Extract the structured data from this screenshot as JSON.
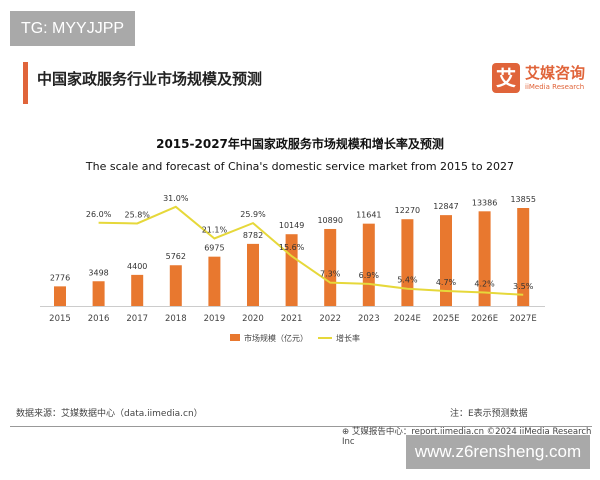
{
  "watermark_top": "TG: MYYJJPP",
  "watermark_bottom": "www.z6rensheng.com",
  "header": {
    "title": "中国家政服务行业市场规模及预测"
  },
  "logo": {
    "mark": "艾",
    "name_cn": "艾媒咨询",
    "name_en": "iiMedia Research"
  },
  "footer": {
    "source": "数据来源：艾媒数据中心（data.iimedia.cn）",
    "note": "注：E表示预测数据",
    "report": "艾媒报告中心：report.iimedia.cn    ©2024  iiMedia Research  Inc"
  },
  "chart_data": {
    "type": "bar",
    "title": "2015-2027年中国家政服务市场规模和增长率及预测",
    "subtitle": "The scale and forecast of China's domestic service market from 2015 to 2027",
    "categories": [
      "2015",
      "2016",
      "2017",
      "2018",
      "2019",
      "2020",
      "2021",
      "2022",
      "2023",
      "2024E",
      "2025E",
      "2026E",
      "2027E"
    ],
    "series": [
      {
        "name": "市场规模（亿元）",
        "type": "bar",
        "color": "#e8782f",
        "values": [
          2776,
          3498,
          4400,
          5762,
          6975,
          8782,
          10149,
          10890,
          11641,
          12270,
          12847,
          13386,
          13855
        ]
      },
      {
        "name": "增长率",
        "type": "line",
        "color": "#e6d83a",
        "values": [
          null,
          26.0,
          25.8,
          31.0,
          21.1,
          25.9,
          15.6,
          7.3,
          6.9,
          5.4,
          4.7,
          4.2,
          3.5
        ],
        "labels": [
          "",
          "26.0%",
          "25.8%",
          "31.0%",
          "21.1%",
          "25.9%",
          "15.6%",
          "7.3%",
          "6.9%",
          "5.4%",
          "4.7%",
          "4.2%",
          "3.5%"
        ]
      }
    ],
    "legend_position": "bottom",
    "grid": false
  }
}
